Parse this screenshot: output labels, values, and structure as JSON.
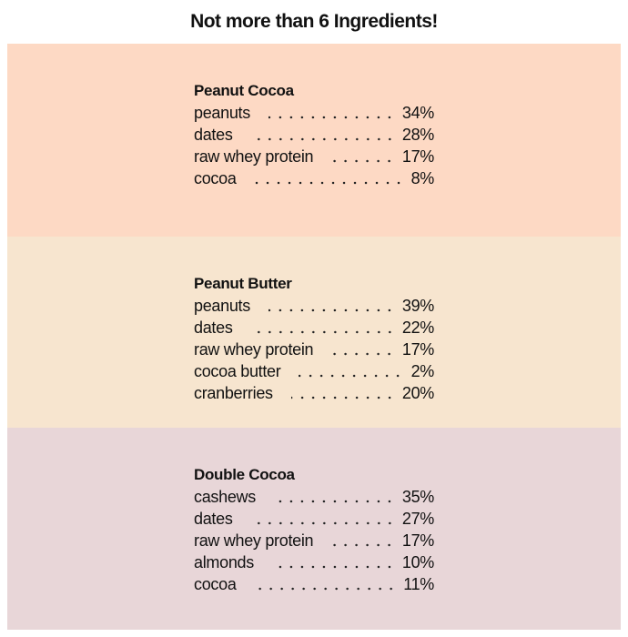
{
  "title": "Not more than 6 Ingredients!",
  "sections": [
    {
      "name": "Peanut Cocoa",
      "items": [
        {
          "name": "peanuts",
          "percent": "34%"
        },
        {
          "name": "dates",
          "percent": "28%"
        },
        {
          "name": "raw whey protein",
          "percent": "17%"
        },
        {
          "name": "cocoa",
          "percent": "8%"
        }
      ]
    },
    {
      "name": "Peanut Butter",
      "items": [
        {
          "name": "peanuts",
          "percent": "39%"
        },
        {
          "name": "dates",
          "percent": "22%"
        },
        {
          "name": "raw whey protein",
          "percent": "17%"
        },
        {
          "name": "cocoa butter",
          "percent": "2%"
        },
        {
          "name": "cranberries",
          "percent": "20%"
        }
      ]
    },
    {
      "name": "Double Cocoa",
      "items": [
        {
          "name": "cashews",
          "percent": "35%"
        },
        {
          "name": "dates",
          "percent": "27%"
        },
        {
          "name": "raw whey protein",
          "percent": "17%"
        },
        {
          "name": "almonds",
          "percent": "10%"
        },
        {
          "name": "cocoa",
          "percent": "11%"
        }
      ]
    }
  ]
}
